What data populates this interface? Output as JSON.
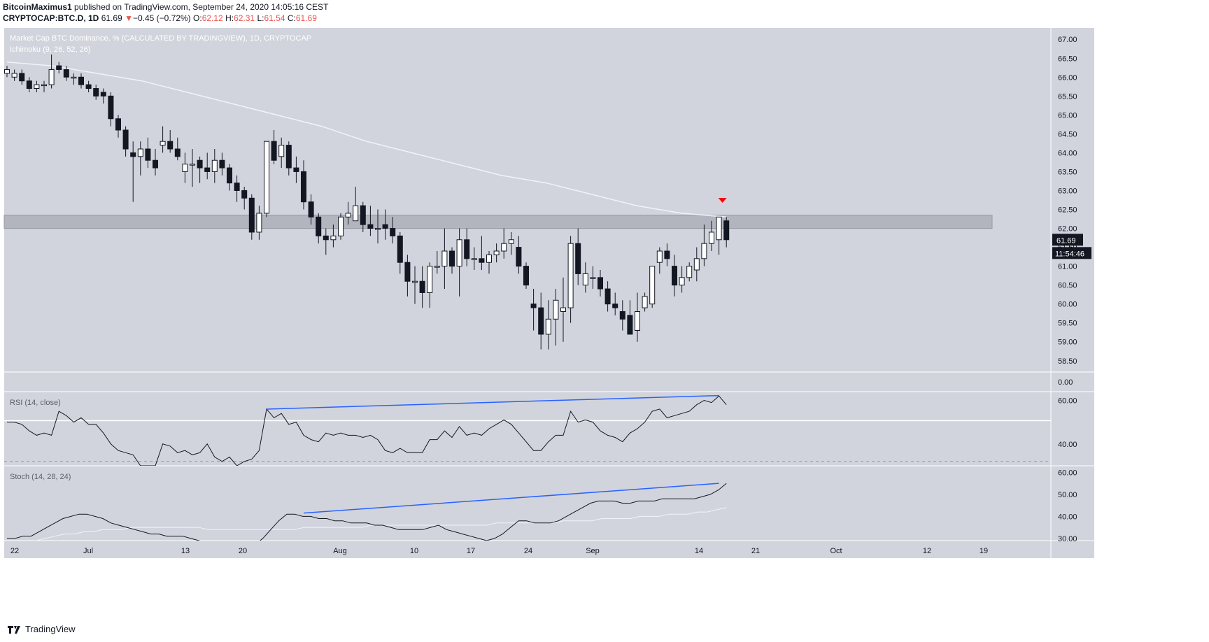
{
  "header": {
    "author": "BitcoinMaximus1",
    "published_text": "published on TradingView.com, September 24, 2020 14:05:16 CEST",
    "symbol": "CRYPTOCAP:BTC.D, 1D",
    "last": "61.69",
    "change_arrow": "▼",
    "change": "−0.45 (−0.72%)",
    "o_label": "O:",
    "o_value": "62.12",
    "h_label": "H:",
    "h_value": "62.31",
    "l_label": "L:",
    "l_value": "61.54",
    "c_label": "C:",
    "c_value": "61.69"
  },
  "main_pane": {
    "title": "Market Cap BTC Dominance, % (CALCULATED BY TRADINGVIEW), 1D, CRYPTOCAP",
    "indicator": "Ichimoku (9, 26, 52, 26)",
    "last_price_label": "61.69",
    "countdown_label": "11:54:46",
    "extra_axis_label": "0.00"
  },
  "rsi_pane": {
    "title": "RSI (14, close)"
  },
  "stoch_pane": {
    "title": "Stoch (14, 28, 24)"
  },
  "footer": {
    "brand": "TradingView"
  },
  "colors": {
    "background": "#d1d4dc",
    "candle_up": "#ffffff",
    "candle_down": "#131722",
    "resistance_zone": "#b2b5be",
    "marker": "#ff0000",
    "trendline": "#2962ff",
    "ma_line": "#f0f3fa",
    "axis_text": "#131722"
  },
  "chart_data": [
    {
      "type": "candlestick",
      "title": "Market Cap BTC Dominance, % (CALCULATED BY TRADINGVIEW), 1D, CRYPTOCAP",
      "ylim": [
        58.2,
        67.3
      ],
      "y_ticks": [
        58.5,
        59.0,
        59.5,
        60.0,
        60.5,
        61.0,
        61.5,
        62.0,
        62.5,
        63.0,
        63.5,
        64.0,
        64.5,
        65.0,
        65.5,
        66.0,
        66.5,
        67.0
      ],
      "x_ticks": [
        "22",
        "Jul",
        "13",
        "20",
        "Aug",
        "10",
        "17",
        "24",
        "Sep",
        "14",
        "21",
        "Oct",
        "12",
        "19"
      ],
      "candles": [
        {
          "o": 66.1,
          "h": 66.3,
          "l": 66.0,
          "c": 66.2
        },
        {
          "o": 66.0,
          "h": 66.2,
          "l": 65.9,
          "c": 66.1
        },
        {
          "o": 66.1,
          "h": 66.2,
          "l": 65.8,
          "c": 65.9
        },
        {
          "o": 65.9,
          "h": 66.0,
          "l": 65.6,
          "c": 65.7
        },
        {
          "o": 65.7,
          "h": 65.9,
          "l": 65.6,
          "c": 65.8
        },
        {
          "o": 65.8,
          "h": 65.9,
          "l": 65.6,
          "c": 65.8
        },
        {
          "o": 65.8,
          "h": 66.6,
          "l": 65.7,
          "c": 66.2
        },
        {
          "o": 66.3,
          "h": 66.4,
          "l": 66.1,
          "c": 66.2
        },
        {
          "o": 66.2,
          "h": 66.3,
          "l": 65.9,
          "c": 66.0
        },
        {
          "o": 66.0,
          "h": 66.1,
          "l": 65.8,
          "c": 66.0
        },
        {
          "o": 66.0,
          "h": 66.1,
          "l": 65.7,
          "c": 65.8
        },
        {
          "o": 65.8,
          "h": 65.9,
          "l": 65.6,
          "c": 65.7
        },
        {
          "o": 65.7,
          "h": 65.8,
          "l": 65.4,
          "c": 65.5
        },
        {
          "o": 65.6,
          "h": 65.7,
          "l": 65.3,
          "c": 65.5
        },
        {
          "o": 65.5,
          "h": 65.6,
          "l": 64.7,
          "c": 64.9
        },
        {
          "o": 64.9,
          "h": 65.0,
          "l": 64.4,
          "c": 64.6
        },
        {
          "o": 64.6,
          "h": 64.7,
          "l": 63.9,
          "c": 64.1
        },
        {
          "o": 64.0,
          "h": 64.3,
          "l": 62.7,
          "c": 63.9
        },
        {
          "o": 63.9,
          "h": 64.3,
          "l": 63.4,
          "c": 64.1
        },
        {
          "o": 64.1,
          "h": 64.4,
          "l": 63.6,
          "c": 63.8
        },
        {
          "o": 63.8,
          "h": 64.1,
          "l": 63.4,
          "c": 63.6
        },
        {
          "o": 64.2,
          "h": 64.7,
          "l": 64.0,
          "c": 64.3
        },
        {
          "o": 64.3,
          "h": 64.6,
          "l": 64.0,
          "c": 64.1
        },
        {
          "o": 64.1,
          "h": 64.4,
          "l": 63.8,
          "c": 63.9
        },
        {
          "o": 63.5,
          "h": 64.0,
          "l": 63.2,
          "c": 63.7
        },
        {
          "o": 63.7,
          "h": 64.1,
          "l": 63.1,
          "c": 63.7
        },
        {
          "o": 63.8,
          "h": 63.9,
          "l": 63.2,
          "c": 63.6
        },
        {
          "o": 63.6,
          "h": 64.0,
          "l": 63.3,
          "c": 63.5
        },
        {
          "o": 63.5,
          "h": 64.1,
          "l": 63.2,
          "c": 63.8
        },
        {
          "o": 63.8,
          "h": 64.0,
          "l": 63.4,
          "c": 63.6
        },
        {
          "o": 63.6,
          "h": 63.7,
          "l": 63.0,
          "c": 63.2
        },
        {
          "o": 63.2,
          "h": 63.4,
          "l": 62.7,
          "c": 63.0
        },
        {
          "o": 63.0,
          "h": 63.1,
          "l": 62.5,
          "c": 62.8
        },
        {
          "o": 62.8,
          "h": 62.9,
          "l": 61.7,
          "c": 61.9
        },
        {
          "o": 61.9,
          "h": 62.6,
          "l": 61.7,
          "c": 62.4
        },
        {
          "o": 62.4,
          "h": 64.3,
          "l": 62.3,
          "c": 64.3
        },
        {
          "o": 64.3,
          "h": 64.6,
          "l": 63.7,
          "c": 63.8
        },
        {
          "o": 63.9,
          "h": 64.4,
          "l": 63.6,
          "c": 64.2
        },
        {
          "o": 64.2,
          "h": 64.3,
          "l": 63.4,
          "c": 63.6
        },
        {
          "o": 63.6,
          "h": 63.9,
          "l": 63.2,
          "c": 63.5
        },
        {
          "o": 63.5,
          "h": 63.8,
          "l": 62.5,
          "c": 62.7
        },
        {
          "o": 62.7,
          "h": 62.9,
          "l": 62.1,
          "c": 62.3
        },
        {
          "o": 62.3,
          "h": 62.4,
          "l": 61.6,
          "c": 61.8
        },
        {
          "o": 61.8,
          "h": 62.0,
          "l": 61.3,
          "c": 61.7
        },
        {
          "o": 61.7,
          "h": 62.1,
          "l": 61.5,
          "c": 61.8
        },
        {
          "o": 61.8,
          "h": 62.4,
          "l": 61.7,
          "c": 62.3
        },
        {
          "o": 62.3,
          "h": 62.7,
          "l": 62.1,
          "c": 62.4
        },
        {
          "o": 62.2,
          "h": 63.1,
          "l": 62.2,
          "c": 62.6
        },
        {
          "o": 62.6,
          "h": 62.7,
          "l": 61.9,
          "c": 62.1
        },
        {
          "o": 62.1,
          "h": 62.6,
          "l": 61.8,
          "c": 62.0
        },
        {
          "o": 62.0,
          "h": 62.5,
          "l": 61.6,
          "c": 62.0
        },
        {
          "o": 62.1,
          "h": 62.5,
          "l": 61.7,
          "c": 62.0
        },
        {
          "o": 62.0,
          "h": 62.3,
          "l": 61.6,
          "c": 61.8
        },
        {
          "o": 61.8,
          "h": 61.9,
          "l": 60.8,
          "c": 61.1
        },
        {
          "o": 61.1,
          "h": 61.3,
          "l": 60.2,
          "c": 60.6
        },
        {
          "o": 60.6,
          "h": 61.0,
          "l": 60.0,
          "c": 60.6
        },
        {
          "o": 60.6,
          "h": 61.0,
          "l": 59.9,
          "c": 60.3
        },
        {
          "o": 60.3,
          "h": 61.1,
          "l": 59.9,
          "c": 61.0
        },
        {
          "o": 61.0,
          "h": 61.4,
          "l": 60.8,
          "c": 61.0
        },
        {
          "o": 61.0,
          "h": 62.0,
          "l": 60.4,
          "c": 61.4
        },
        {
          "o": 61.4,
          "h": 61.5,
          "l": 60.8,
          "c": 61.0
        },
        {
          "o": 61.0,
          "h": 62.0,
          "l": 60.2,
          "c": 61.7
        },
        {
          "o": 61.7,
          "h": 62.0,
          "l": 61.0,
          "c": 61.2
        },
        {
          "o": 61.2,
          "h": 61.5,
          "l": 60.9,
          "c": 61.2
        },
        {
          "o": 61.2,
          "h": 61.8,
          "l": 60.9,
          "c": 61.1
        },
        {
          "o": 61.1,
          "h": 61.4,
          "l": 60.8,
          "c": 61.3
        },
        {
          "o": 61.3,
          "h": 61.6,
          "l": 61.1,
          "c": 61.4
        },
        {
          "o": 61.4,
          "h": 62.0,
          "l": 61.2,
          "c": 61.6
        },
        {
          "o": 61.6,
          "h": 61.9,
          "l": 61.3,
          "c": 61.7
        },
        {
          "o": 61.5,
          "h": 61.8,
          "l": 60.8,
          "c": 61.0
        },
        {
          "o": 61.0,
          "h": 61.1,
          "l": 60.4,
          "c": 60.5
        },
        {
          "o": 60.0,
          "h": 60.4,
          "l": 59.3,
          "c": 59.9
        },
        {
          "o": 59.9,
          "h": 60.3,
          "l": 58.8,
          "c": 59.2
        },
        {
          "o": 59.2,
          "h": 60.1,
          "l": 58.8,
          "c": 59.6
        },
        {
          "o": 59.6,
          "h": 60.4,
          "l": 58.9,
          "c": 60.1
        },
        {
          "o": 59.8,
          "h": 60.7,
          "l": 59.0,
          "c": 59.9
        },
        {
          "o": 59.9,
          "h": 61.8,
          "l": 59.5,
          "c": 61.6
        },
        {
          "o": 61.6,
          "h": 62.0,
          "l": 60.5,
          "c": 60.8
        },
        {
          "o": 60.5,
          "h": 61.1,
          "l": 60.3,
          "c": 60.8
        },
        {
          "o": 60.7,
          "h": 61.0,
          "l": 60.4,
          "c": 60.7
        },
        {
          "o": 60.7,
          "h": 60.9,
          "l": 60.2,
          "c": 60.4
        },
        {
          "o": 60.4,
          "h": 60.6,
          "l": 59.8,
          "c": 60.0
        },
        {
          "o": 60.0,
          "h": 60.3,
          "l": 59.7,
          "c": 59.9
        },
        {
          "o": 59.8,
          "h": 60.1,
          "l": 59.3,
          "c": 59.6
        },
        {
          "o": 59.7,
          "h": 60.1,
          "l": 59.2,
          "c": 59.2
        },
        {
          "o": 59.3,
          "h": 60.3,
          "l": 59.0,
          "c": 59.8
        },
        {
          "o": 59.9,
          "h": 60.3,
          "l": 59.8,
          "c": 60.2
        },
        {
          "o": 60.0,
          "h": 61.0,
          "l": 59.9,
          "c": 61.0
        },
        {
          "o": 61.1,
          "h": 61.5,
          "l": 60.8,
          "c": 61.4
        },
        {
          "o": 61.4,
          "h": 61.6,
          "l": 61.0,
          "c": 61.2
        },
        {
          "o": 61.0,
          "h": 61.3,
          "l": 60.2,
          "c": 60.5
        },
        {
          "o": 60.5,
          "h": 61.0,
          "l": 60.3,
          "c": 60.7
        },
        {
          "o": 60.7,
          "h": 61.1,
          "l": 60.6,
          "c": 61.0
        },
        {
          "o": 60.9,
          "h": 61.5,
          "l": 60.6,
          "c": 61.2
        },
        {
          "o": 61.2,
          "h": 62.1,
          "l": 61.0,
          "c": 61.6
        },
        {
          "o": 61.6,
          "h": 62.2,
          "l": 61.4,
          "c": 61.9
        },
        {
          "o": 61.7,
          "h": 62.3,
          "l": 61.3,
          "c": 62.3
        },
        {
          "o": 62.2,
          "h": 62.3,
          "l": 61.5,
          "c": 61.7
        }
      ],
      "ma_line": [
        66.4,
        66.3,
        66.1,
        65.9,
        65.6,
        65.3,
        65.0,
        64.7,
        64.3,
        64.0,
        63.7,
        63.4,
        63.2,
        62.9,
        62.6,
        62.4,
        62.3
      ],
      "resistance_zone": [
        62.0,
        62.35
      ]
    },
    {
      "type": "line",
      "title": "RSI (14, close)",
      "ylim": [
        30.0,
        64.0
      ],
      "y_ticks": [
        40.0,
        60.0
      ],
      "y_tick_labels": [
        "40.00",
        "60.00"
      ],
      "values": [
        50,
        50,
        49,
        46,
        44,
        45,
        44,
        55,
        53,
        50,
        52,
        49,
        49,
        45,
        40,
        37,
        36,
        35,
        30,
        30,
        30,
        40,
        39,
        36,
        37,
        35,
        36,
        40,
        34,
        32,
        34,
        30,
        32,
        33,
        37,
        56,
        52,
        54,
        49,
        50,
        44,
        42,
        41,
        45,
        44,
        45,
        44,
        44,
        43,
        44,
        42,
        37,
        36,
        38,
        36,
        36,
        36,
        42,
        42,
        46,
        43,
        48,
        44,
        45,
        44,
        47,
        49,
        51,
        49,
        45,
        41,
        37,
        37,
        41,
        44,
        44,
        55,
        50,
        51,
        50,
        46,
        44,
        43,
        41,
        45,
        47,
        50,
        55,
        56,
        52,
        53,
        54,
        55,
        58,
        60,
        59,
        62,
        58
      ],
      "trendline": [
        [
          35,
          56
        ],
        [
          96,
          62.2
        ]
      ]
    },
    {
      "type": "line",
      "title": "Stoch (14, 28, 24)",
      "ylim": [
        29.0,
        63.0
      ],
      "y_ticks": [
        30.0,
        40.0,
        50.0,
        60.0
      ],
      "y_tick_labels": [
        "30.00",
        "40.00",
        "50.00",
        "60.00"
      ],
      "series": [
        {
          "values": [
            30,
            30,
            31,
            31,
            33,
            35,
            37,
            39,
            40,
            41,
            41,
            40,
            39,
            37,
            36,
            35,
            34,
            33,
            32,
            32,
            31,
            31,
            31,
            30,
            29,
            28,
            27,
            26,
            26,
            25,
            26,
            27,
            30,
            34,
            38,
            41,
            41,
            40,
            40,
            39,
            39,
            38,
            38,
            37,
            37,
            37,
            36,
            36,
            35,
            34,
            34,
            34,
            34,
            35,
            36,
            34,
            33,
            32,
            31,
            30,
            29,
            30,
            32,
            35,
            38,
            38,
            37,
            37,
            37,
            38,
            40,
            42,
            44,
            46,
            47,
            47,
            47,
            46,
            46,
            47,
            47,
            47,
            48,
            48,
            48,
            48,
            48,
            49,
            50,
            52,
            55
          ]
        },
        {
          "values": [
            26,
            27,
            28,
            29,
            30,
            31,
            32,
            32,
            33,
            33,
            34,
            34,
            34,
            35,
            35,
            35,
            35,
            35,
            35,
            35,
            35,
            34,
            34,
            34,
            34,
            34,
            34,
            34,
            34,
            34,
            34,
            35,
            35,
            35,
            35,
            35,
            35,
            35,
            36,
            36,
            36,
            36,
            36,
            36,
            36,
            36,
            36,
            36,
            36,
            36,
            36,
            37,
            37,
            37,
            37,
            37,
            37,
            37,
            38,
            38,
            38,
            38,
            39,
            39,
            39,
            39,
            40,
            40,
            40,
            41,
            41,
            41,
            42,
            42,
            43,
            44
          ]
        }
      ],
      "trendline": [
        [
          40,
          41.5
        ],
        [
          96,
          55
        ]
      ]
    }
  ]
}
